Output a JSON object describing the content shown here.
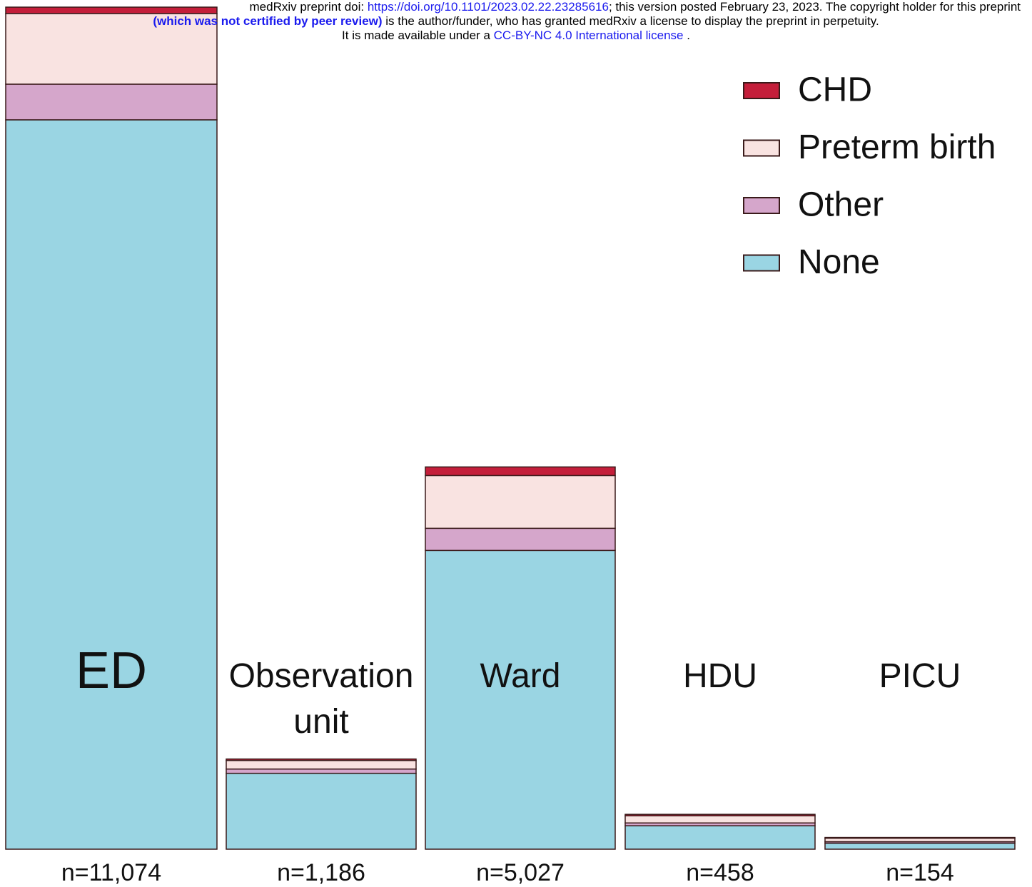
{
  "notice": [
    [
      {
        "text": "medRxiv preprint doi: ",
        "color": "#000000"
      },
      {
        "text": "https://doi.org/10.1101/2023.02.22.23285616",
        "color": "#1a1aee"
      },
      {
        "text": "; this version posted February 23, 2023. The copyright holder for this preprint",
        "color": "#000000"
      }
    ],
    [
      {
        "text": "(which was not certified by peer review)",
        "color": "#1a1aee",
        "bold": true
      },
      {
        "text": " is the author/funder, who has granted medRxiv a license to display the preprint in perpetuity.",
        "color": "#000000"
      }
    ],
    [
      {
        "text": "It is made available under a ",
        "color": "#000000"
      },
      {
        "text": "CC-BY-NC 4.0 International license",
        "color": "#1a1aee"
      },
      {
        "text": " .",
        "color": "#000000"
      }
    ]
  ],
  "chart_data": {
    "type": "stacked_bar",
    "categories": [
      "ED",
      "Observation unit",
      "Ward",
      "HDU",
      "PICU"
    ],
    "n_labels": [
      "n=11,074",
      "n=1,186",
      "n=5,027",
      "n=458",
      "n=154"
    ],
    "series": [
      {
        "name": "None",
        "color": "#9ad5e3",
        "values": [
          9592,
          998,
          3929,
          308,
          79
        ]
      },
      {
        "name": "Other",
        "color": "#d5a6cb",
        "values": [
          469,
          56,
          291,
          37,
          19
        ]
      },
      {
        "name": "Preterm birth",
        "color": "#f9e3e1",
        "values": [
          929,
          113,
          694,
          94,
          47
        ]
      },
      {
        "name": "CHD",
        "color": "#c41e3a",
        "values": [
          84,
          19,
          113,
          19,
          9
        ]
      }
    ],
    "legend": "top-right"
  }
}
